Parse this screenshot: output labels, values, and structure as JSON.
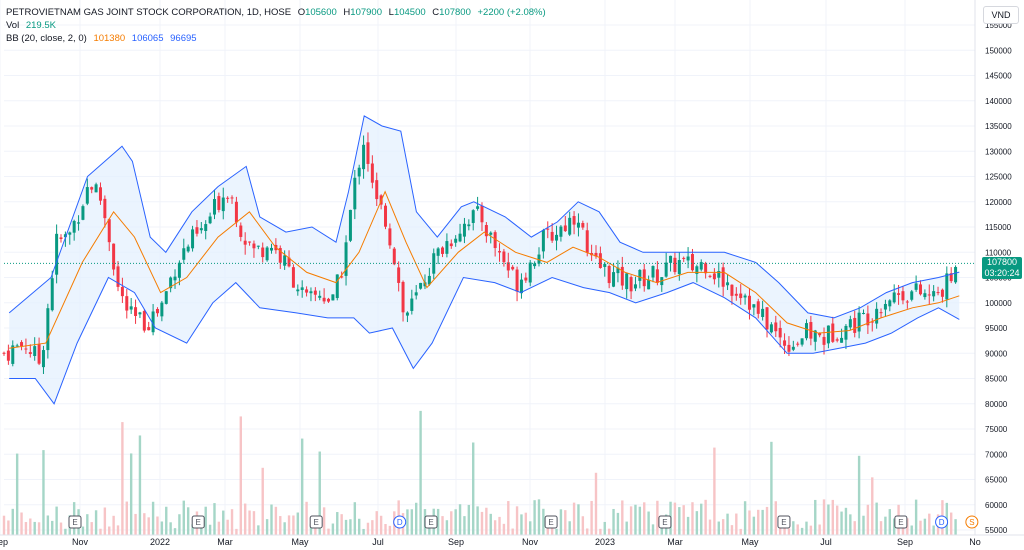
{
  "header": {
    "symbol": "PETROVIETNAM GAS JOINT STOCK CORPORATION, 1D, HOSE",
    "o_label": "O",
    "o_value": "105600",
    "h_label": "H",
    "h_value": "107900",
    "l_label": "L",
    "l_value": "104500",
    "c_label": "C",
    "c_value": "107800",
    "change": "+2200 (+2.08%)"
  },
  "volume": {
    "label": "Vol",
    "value": "219.5K"
  },
  "bollinger": {
    "label": "BB (20, close, 2, 0)",
    "basis": "101380",
    "upper": "106065",
    "lower": "96695"
  },
  "currency": "VND",
  "last_price": {
    "value": "107800",
    "countdown": "03:20:24"
  },
  "colors": {
    "up": "#089981",
    "down": "#f23645",
    "basis": "#f57c00",
    "band": "#2962ff",
    "band_fill": "#e3effd",
    "grid": "#f0f3fa",
    "vol_up": "#a5d6c7",
    "vol_down": "#f7c4c6"
  },
  "chart_data": {
    "type": "candlestick",
    "y_ticks": [
      55000,
      60000,
      65000,
      70000,
      75000,
      80000,
      85000,
      90000,
      95000,
      100000,
      105000,
      110000,
      115000,
      120000,
      125000,
      130000,
      135000,
      140000,
      145000,
      150000,
      155000
    ],
    "x_labels": [
      "Sep",
      "Nov",
      "2022",
      "Mar",
      "May",
      "Jul",
      "Sep",
      "Nov",
      "2023",
      "Mar",
      "May",
      "Jul",
      "Sep",
      "No"
    ],
    "ylim": [
      54000,
      158000
    ],
    "price_close_path": [
      {
        "d": 0,
        "v": 90000
      },
      {
        "d": 20,
        "v": 92000
      },
      {
        "d": 35,
        "v": 88000
      },
      {
        "d": 50,
        "v": 112000
      },
      {
        "d": 62,
        "v": 113000
      },
      {
        "d": 75,
        "v": 120000
      },
      {
        "d": 82,
        "v": 124000
      },
      {
        "d": 92,
        "v": 121000
      },
      {
        "d": 100,
        "v": 114000
      },
      {
        "d": 110,
        "v": 102000
      },
      {
        "d": 122,
        "v": 97000
      },
      {
        "d": 135,
        "v": 96000
      },
      {
        "d": 150,
        "v": 99000
      },
      {
        "d": 165,
        "v": 108000
      },
      {
        "d": 178,
        "v": 112000
      },
      {
        "d": 190,
        "v": 114000
      },
      {
        "d": 205,
        "v": 120000
      },
      {
        "d": 215,
        "v": 123000
      },
      {
        "d": 228,
        "v": 114000
      },
      {
        "d": 240,
        "v": 110000
      },
      {
        "d": 255,
        "v": 112000
      },
      {
        "d": 268,
        "v": 108000
      },
      {
        "d": 280,
        "v": 104000
      },
      {
        "d": 290,
        "v": 100000
      },
      {
        "d": 303,
        "v": 102000
      },
      {
        "d": 315,
        "v": 100000
      },
      {
        "d": 325,
        "v": 108000
      },
      {
        "d": 337,
        "v": 125000
      },
      {
        "d": 345,
        "v": 133000
      },
      {
        "d": 355,
        "v": 120000
      },
      {
        "d": 365,
        "v": 117000
      },
      {
        "d": 375,
        "v": 108000
      },
      {
        "d": 383,
        "v": 97000
      },
      {
        "d": 395,
        "v": 101000
      },
      {
        "d": 407,
        "v": 107000
      },
      {
        "d": 420,
        "v": 111000
      },
      {
        "d": 433,
        "v": 114000
      },
      {
        "d": 445,
        "v": 117000
      },
      {
        "d": 457,
        "v": 117000
      },
      {
        "d": 468,
        "v": 112000
      },
      {
        "d": 480,
        "v": 108000
      },
      {
        "d": 490,
        "v": 104000
      },
      {
        "d": 502,
        "v": 107000
      },
      {
        "d": 515,
        "v": 112000
      },
      {
        "d": 528,
        "v": 114000
      },
      {
        "d": 540,
        "v": 116000
      },
      {
        "d": 550,
        "v": 118000
      },
      {
        "d": 560,
        "v": 108000
      },
      {
        "d": 572,
        "v": 107000
      },
      {
        "d": 585,
        "v": 105000
      },
      {
        "d": 600,
        "v": 104000
      },
      {
        "d": 615,
        "v": 105000
      },
      {
        "d": 630,
        "v": 106000
      },
      {
        "d": 645,
        "v": 108000
      },
      {
        "d": 660,
        "v": 107000
      },
      {
        "d": 672,
        "v": 108000
      },
      {
        "d": 685,
        "v": 105000
      },
      {
        "d": 698,
        "v": 103000
      },
      {
        "d": 710,
        "v": 102000
      },
      {
        "d": 720,
        "v": 98000
      },
      {
        "d": 732,
        "v": 96000
      },
      {
        "d": 742,
        "v": 93000
      },
      {
        "d": 755,
        "v": 92000
      },
      {
        "d": 770,
        "v": 94000
      },
      {
        "d": 785,
        "v": 93000
      },
      {
        "d": 800,
        "v": 95000
      },
      {
        "d": 815,
        "v": 96000
      },
      {
        "d": 830,
        "v": 98000
      },
      {
        "d": 845,
        "v": 101000
      },
      {
        "d": 860,
        "v": 102000
      },
      {
        "d": 875,
        "v": 102000
      },
      {
        "d": 890,
        "v": 101000
      },
      {
        "d": 905,
        "v": 104000
      },
      {
        "d": 915,
        "v": 107800
      }
    ],
    "bb_upper": [
      {
        "d": 5,
        "v": 98000
      },
      {
        "d": 45,
        "v": 105000
      },
      {
        "d": 80,
        "v": 125000
      },
      {
        "d": 113,
        "v": 131000
      },
      {
        "d": 123,
        "v": 128000
      },
      {
        "d": 140,
        "v": 113000
      },
      {
        "d": 155,
        "v": 110000
      },
      {
        "d": 180,
        "v": 118000
      },
      {
        "d": 205,
        "v": 123000
      },
      {
        "d": 232,
        "v": 127000
      },
      {
        "d": 245,
        "v": 117000
      },
      {
        "d": 270,
        "v": 114000
      },
      {
        "d": 295,
        "v": 115000
      },
      {
        "d": 318,
        "v": 112000
      },
      {
        "d": 330,
        "v": 122000
      },
      {
        "d": 345,
        "v": 137000
      },
      {
        "d": 362,
        "v": 135000
      },
      {
        "d": 380,
        "v": 134000
      },
      {
        "d": 395,
        "v": 118000
      },
      {
        "d": 415,
        "v": 113000
      },
      {
        "d": 438,
        "v": 119000
      },
      {
        "d": 450,
        "v": 120000
      },
      {
        "d": 480,
        "v": 117000
      },
      {
        "d": 505,
        "v": 113000
      },
      {
        "d": 530,
        "v": 116000
      },
      {
        "d": 550,
        "v": 120000
      },
      {
        "d": 570,
        "v": 118000
      },
      {
        "d": 590,
        "v": 112000
      },
      {
        "d": 612,
        "v": 110000
      },
      {
        "d": 640,
        "v": 110000
      },
      {
        "d": 665,
        "v": 110000
      },
      {
        "d": 690,
        "v": 110000
      },
      {
        "d": 720,
        "v": 108000
      },
      {
        "d": 742,
        "v": 104000
      },
      {
        "d": 770,
        "v": 98000
      },
      {
        "d": 795,
        "v": 97000
      },
      {
        "d": 820,
        "v": 99000
      },
      {
        "d": 845,
        "v": 102000
      },
      {
        "d": 870,
        "v": 104000
      },
      {
        "d": 895,
        "v": 105000
      },
      {
        "d": 915,
        "v": 106065
      }
    ],
    "bb_lower": [
      {
        "d": 5,
        "v": 85000
      },
      {
        "d": 30,
        "v": 85000
      },
      {
        "d": 48,
        "v": 80000
      },
      {
        "d": 70,
        "v": 92000
      },
      {
        "d": 100,
        "v": 105000
      },
      {
        "d": 125,
        "v": 102000
      },
      {
        "d": 145,
        "v": 95000
      },
      {
        "d": 175,
        "v": 92000
      },
      {
        "d": 200,
        "v": 100000
      },
      {
        "d": 222,
        "v": 104000
      },
      {
        "d": 245,
        "v": 99000
      },
      {
        "d": 280,
        "v": 98000
      },
      {
        "d": 310,
        "v": 97000
      },
      {
        "d": 335,
        "v": 97000
      },
      {
        "d": 350,
        "v": 94000
      },
      {
        "d": 372,
        "v": 95000
      },
      {
        "d": 392,
        "v": 87000
      },
      {
        "d": 410,
        "v": 92000
      },
      {
        "d": 440,
        "v": 105000
      },
      {
        "d": 470,
        "v": 104000
      },
      {
        "d": 495,
        "v": 102000
      },
      {
        "d": 525,
        "v": 105000
      },
      {
        "d": 555,
        "v": 103000
      },
      {
        "d": 580,
        "v": 102000
      },
      {
        "d": 605,
        "v": 100000
      },
      {
        "d": 635,
        "v": 102000
      },
      {
        "d": 660,
        "v": 104000
      },
      {
        "d": 690,
        "v": 101000
      },
      {
        "d": 720,
        "v": 97000
      },
      {
        "d": 750,
        "v": 90000
      },
      {
        "d": 775,
        "v": 90000
      },
      {
        "d": 800,
        "v": 91000
      },
      {
        "d": 825,
        "v": 92000
      },
      {
        "d": 850,
        "v": 94000
      },
      {
        "d": 875,
        "v": 97000
      },
      {
        "d": 895,
        "v": 99000
      },
      {
        "d": 915,
        "v": 96695
      }
    ],
    "bb_basis": [
      {
        "d": 5,
        "v": 91000
      },
      {
        "d": 40,
        "v": 92000
      },
      {
        "d": 75,
        "v": 108000
      },
      {
        "d": 105,
        "v": 118000
      },
      {
        "d": 125,
        "v": 113000
      },
      {
        "d": 150,
        "v": 102000
      },
      {
        "d": 175,
        "v": 105000
      },
      {
        "d": 205,
        "v": 113000
      },
      {
        "d": 235,
        "v": 118000
      },
      {
        "d": 260,
        "v": 111000
      },
      {
        "d": 290,
        "v": 106000
      },
      {
        "d": 318,
        "v": 104000
      },
      {
        "d": 340,
        "v": 110000
      },
      {
        "d": 365,
        "v": 122000
      },
      {
        "d": 385,
        "v": 112000
      },
      {
        "d": 405,
        "v": 103000
      },
      {
        "d": 435,
        "v": 110000
      },
      {
        "d": 460,
        "v": 114000
      },
      {
        "d": 490,
        "v": 110000
      },
      {
        "d": 520,
        "v": 108000
      },
      {
        "d": 545,
        "v": 111000
      },
      {
        "d": 570,
        "v": 109000
      },
      {
        "d": 595,
        "v": 106000
      },
      {
        "d": 625,
        "v": 104000
      },
      {
        "d": 655,
        "v": 106000
      },
      {
        "d": 690,
        "v": 106000
      },
      {
        "d": 720,
        "v": 102000
      },
      {
        "d": 750,
        "v": 96000
      },
      {
        "d": 780,
        "v": 94000
      },
      {
        "d": 810,
        "v": 94500
      },
      {
        "d": 840,
        "v": 97000
      },
      {
        "d": 870,
        "v": 99000
      },
      {
        "d": 895,
        "v": 100000
      },
      {
        "d": 915,
        "v": 101380
      }
    ],
    "earnings_markers": [
      {
        "d": 68,
        "label": "E"
      },
      {
        "d": 186,
        "label": "E"
      },
      {
        "d": 299,
        "label": "E"
      },
      {
        "d": 409,
        "label": "E"
      },
      {
        "d": 524,
        "label": "E"
      },
      {
        "d": 633,
        "label": "E"
      },
      {
        "d": 747,
        "label": "E"
      },
      {
        "d": 859,
        "label": "E"
      }
    ],
    "dividend_markers": [
      {
        "d": 379,
        "label": "D"
      },
      {
        "d": 898,
        "label": "D"
      }
    ],
    "split_markers": [
      {
        "d": 927,
        "label": "S"
      }
    ]
  }
}
